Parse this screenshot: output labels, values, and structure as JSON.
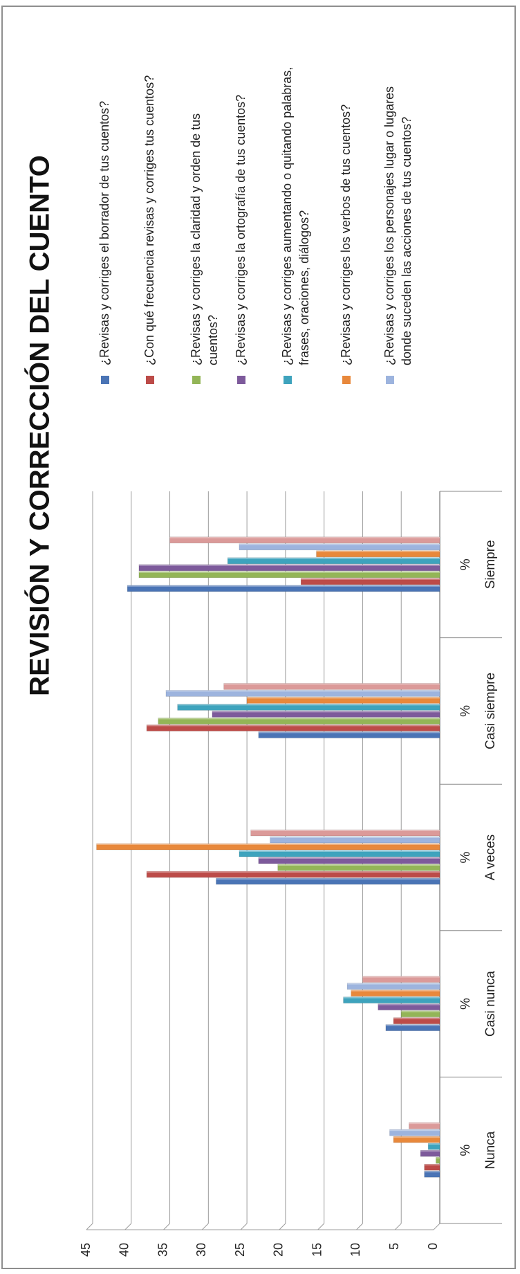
{
  "chart_data": {
    "type": "bar",
    "orientation": "rotated-90-ccw",
    "title": "REVISIÓN Y CORRECCIÓN  DEL CUENTO",
    "categories": [
      "Nunca",
      "Casi nunca",
      "A veces",
      "Casi siempre",
      "Siempre"
    ],
    "sub_labels": [
      "%",
      "%",
      "%",
      "%",
      "%"
    ],
    "y_ticks": [
      0,
      5,
      10,
      15,
      20,
      25,
      30,
      35,
      40,
      45
    ],
    "ylim": [
      0,
      45
    ],
    "grid": true,
    "legend_position": "right (top after rotation)",
    "series": [
      {
        "lines": [
          "¿Revisas y corriges el borrador de tus cuentos?"
        ],
        "color": "#4a74b5",
        "values": [
          2,
          7,
          29,
          23.5,
          40.5
        ]
      },
      {
        "lines": [
          "¿Con qué frecuencia revisas y corriges tus cuentos?"
        ],
        "color": "#bc4b48",
        "values": [
          2,
          6,
          38,
          38,
          18
        ]
      },
      {
        "lines": [
          "¿Revisas y corriges la claridad y orden de tus",
          "cuentos?"
        ],
        "color": "#93b557",
        "values": [
          0.5,
          5,
          21,
          36.5,
          39
        ]
      },
      {
        "lines": [
          "¿Revisas y corriges la ortografía de tus cuentos?"
        ],
        "color": "#7d5a9b",
        "values": [
          2.5,
          8,
          23.5,
          29.5,
          39
        ]
      },
      {
        "lines": [
          "¿Revisas y corriges aumentando o quitando palabras,",
          "frases, oraciones, diálogos?"
        ],
        "color": "#3ea3bd",
        "values": [
          1.5,
          12.5,
          26,
          34,
          27.5
        ]
      },
      {
        "lines": [
          "¿Revisas y corriges los verbos de tus cuentos?"
        ],
        "color": "#e8883b",
        "values": [
          6,
          11.5,
          44.5,
          25,
          16
        ]
      },
      {
        "lines": [
          "¿Revisas y corriges los personajes lugar o lugares",
          "donde suceden las acciones de tus cuentos?"
        ],
        "color": "#9db4de",
        "values": [
          6.5,
          12,
          22,
          35.5,
          26
        ]
      },
      {
        "lines": [],
        "color": "#db9a99",
        "values": [
          4,
          10,
          24.5,
          28,
          35
        ]
      }
    ]
  }
}
